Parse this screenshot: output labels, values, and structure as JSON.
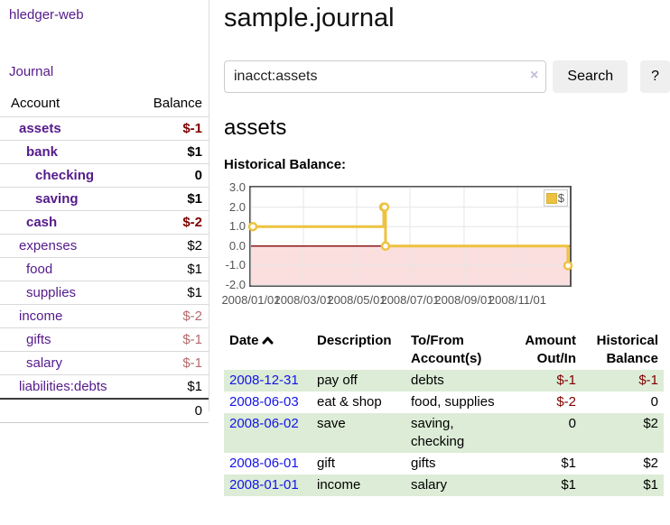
{
  "app": {
    "brand": "hledger-web",
    "nav": {
      "journal": "Journal"
    }
  },
  "sidebar": {
    "header": {
      "account": "Account",
      "balance": "Balance"
    },
    "accounts": [
      {
        "name": "assets",
        "balance": "$-1"
      },
      {
        "name": "bank",
        "balance": "$1"
      },
      {
        "name": "checking",
        "balance": "0"
      },
      {
        "name": "saving",
        "balance": "$1"
      },
      {
        "name": "cash",
        "balance": "$-2"
      },
      {
        "name": "expenses",
        "balance": "$2"
      },
      {
        "name": "food",
        "balance": "$1"
      },
      {
        "name": "supplies",
        "balance": "$1"
      },
      {
        "name": "income",
        "balance": "$-2"
      },
      {
        "name": "gifts",
        "balance": "$-1"
      },
      {
        "name": "salary",
        "balance": "$-1"
      },
      {
        "name": "liabilities:debts",
        "balance": "$1"
      }
    ],
    "total": "0"
  },
  "main": {
    "title": "sample.journal",
    "search": {
      "query": "inacct:assets",
      "clear_icon": "×",
      "search_button": "Search",
      "help_button": "?"
    },
    "account_heading": "assets",
    "section_label": "Historical Balance:"
  },
  "chart_data": {
    "type": "line",
    "style": "step",
    "title": "Historical Balance:",
    "xlabel": "",
    "ylabel": "",
    "xlim": [
      "2008-01-01",
      "2008-12-31"
    ],
    "ylim": [
      -2,
      3
    ],
    "x_ticks": [
      "2008/01/01",
      "2008/03/01",
      "2008/05/01",
      "2008/07/01",
      "2008/09/01",
      "2008/11/01"
    ],
    "y_ticks": [
      "3.0",
      "2.0",
      "1.0",
      "0.0",
      "-1.0",
      "-2.0"
    ],
    "grid": true,
    "legend_position": "top-right",
    "series": [
      {
        "name": "$",
        "color": "#edc240",
        "points": [
          [
            "2008-01-01",
            1
          ],
          [
            "2008-06-01",
            2
          ],
          [
            "2008-06-02",
            2
          ],
          [
            "2008-06-03",
            0
          ],
          [
            "2008-12-31",
            -1
          ]
        ]
      }
    ],
    "grid_color": "#e6e6e6",
    "negative_region_color": "#fbdfdf",
    "zero_line_color": "#8b1a1a",
    "border_color": "#545454"
  },
  "register": {
    "headers": {
      "date": "Date",
      "description": "Description",
      "accounts": "To/From Account(s)",
      "amount": "Amount Out/In",
      "balance": "Historical Balance"
    },
    "rows": [
      {
        "date": "2008-12-31",
        "description": "pay off",
        "accounts": "debts",
        "amount": "$-1",
        "balance": "$-1"
      },
      {
        "date": "2008-06-03",
        "description": "eat & shop",
        "accounts": "food, supplies",
        "amount": "$-2",
        "balance": "0"
      },
      {
        "date": "2008-06-02",
        "description": "save",
        "accounts": "saving, checking",
        "amount": "0",
        "balance": "$2"
      },
      {
        "date": "2008-06-01",
        "description": "gift",
        "accounts": "gifts",
        "amount": "$1",
        "balance": "$2"
      },
      {
        "date": "2008-01-01",
        "description": "income",
        "accounts": "salary",
        "amount": "$1",
        "balance": "$1"
      }
    ]
  },
  "colors": {
    "accent_purple": "#551a8b",
    "link_blue": "#1414e8",
    "negative": "#800000",
    "negative_dim": "#b56a6e",
    "row_stripe_green": "#dcecd6",
    "chart_accent": "#edc240"
  }
}
